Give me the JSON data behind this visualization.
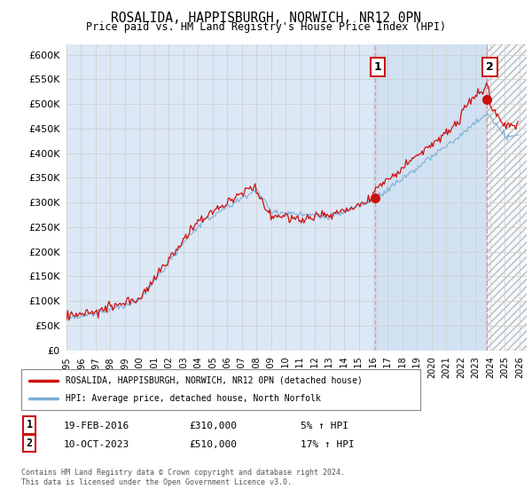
{
  "title": "ROSALIDA, HAPPISBURGH, NORWICH, NR12 0PN",
  "subtitle": "Price paid vs. HM Land Registry's House Price Index (HPI)",
  "legend_label1": "ROSALIDA, HAPPISBURGH, NORWICH, NR12 0PN (detached house)",
  "legend_label2": "HPI: Average price, detached house, North Norfolk",
  "annotation1_date": "19-FEB-2016",
  "annotation1_price": "£310,000",
  "annotation1_hpi": "5% ↑ HPI",
  "annotation2_date": "10-OCT-2023",
  "annotation2_price": "£510,000",
  "annotation2_hpi": "17% ↑ HPI",
  "footer": "Contains HM Land Registry data © Crown copyright and database right 2024.\nThis data is licensed under the Open Government Licence v3.0.",
  "ylim": [
    0,
    620000
  ],
  "yticks": [
    0,
    50000,
    100000,
    150000,
    200000,
    250000,
    300000,
    350000,
    400000,
    450000,
    500000,
    550000,
    600000
  ],
  "grid_color": "#cccccc",
  "bg_color": "#dce8f5",
  "red_line_color": "#cc1111",
  "blue_line_color": "#7aaed6",
  "vline_color": "#ee8888",
  "marker1_x": 2016.12,
  "marker1_y": 310000,
  "marker2_x": 2023.78,
  "marker2_y": 510000,
  "xmin": 1995,
  "xmax": 2026.5,
  "shade_start": 2016.12,
  "shade_end": 2023.78
}
